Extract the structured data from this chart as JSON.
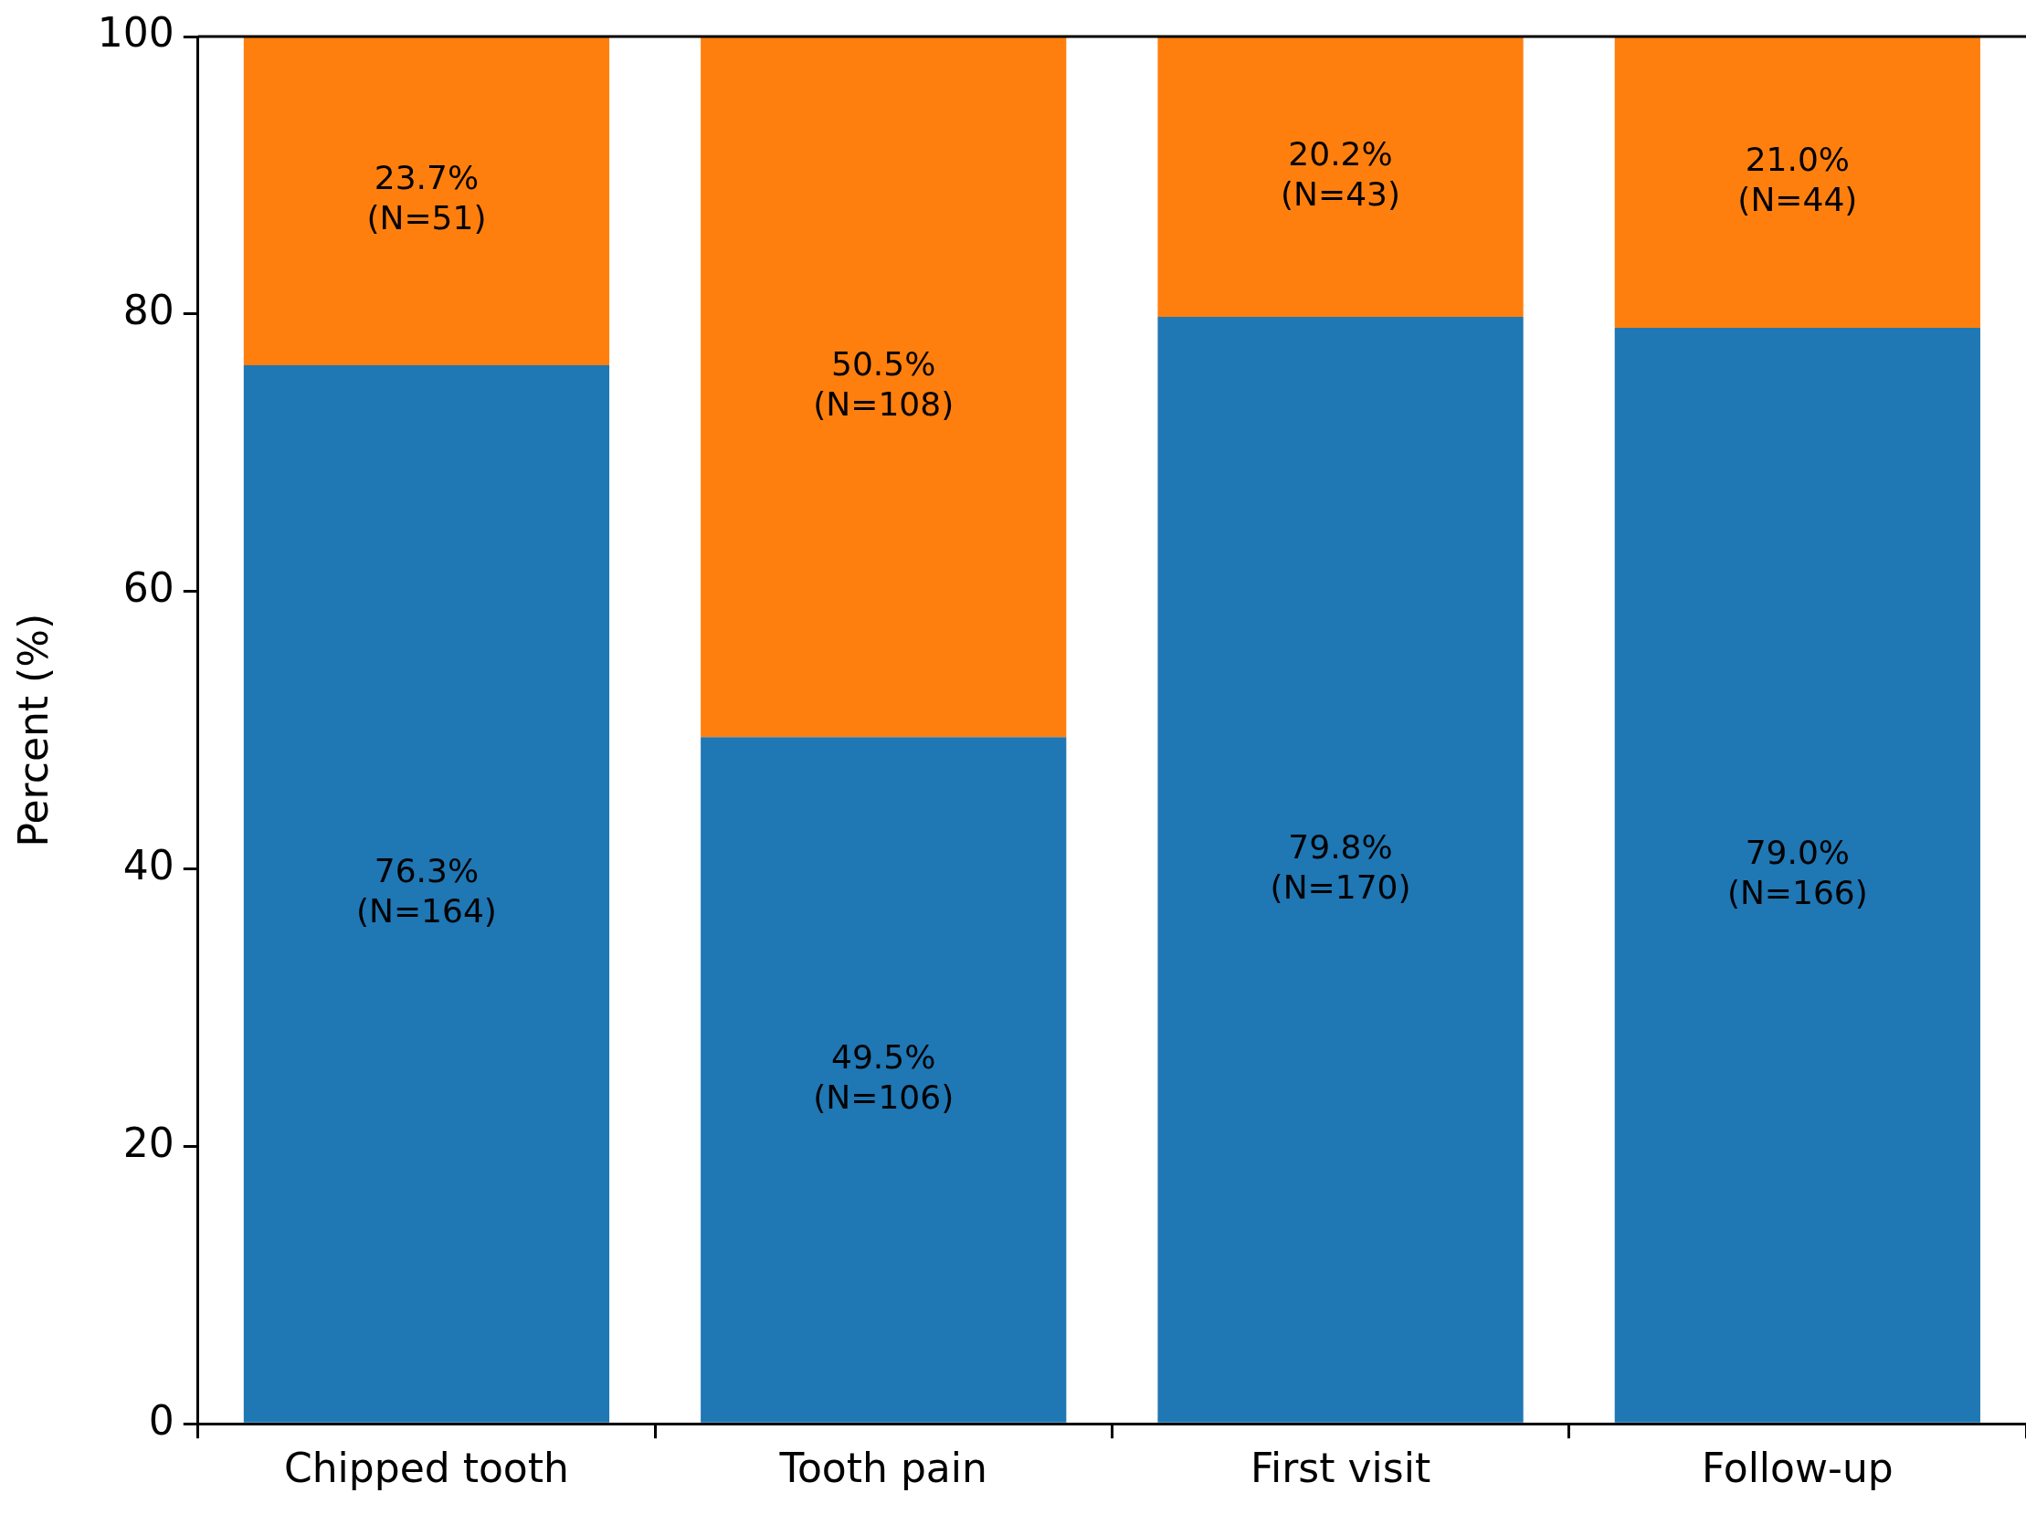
{
  "chart_data": {
    "type": "bar",
    "stacked": true,
    "ylabel": "Percent (%)",
    "categories": [
      "Chipped tooth",
      "Tooth pain",
      "First visit",
      "Follow-up"
    ],
    "series": [
      {
        "color": "#1f77b4",
        "values": [
          76.3,
          49.5,
          79.8,
          79.0
        ],
        "value_labels": [
          "76.3%\n(N=164)",
          "49.5%\n(N=106)",
          "79.8%\n(N=170)",
          "79.0%\n(N=166)"
        ]
      },
      {
        "color": "#ff7f0e",
        "values": [
          23.7,
          50.5,
          20.2,
          21.0
        ],
        "value_labels": [
          "23.7%\n(N=51)",
          "50.5%\n(N=108)",
          "20.2%\n(N=43)",
          "21.0%\n(N=44)"
        ]
      }
    ],
    "ylim": [
      0,
      100
    ],
    "yticks": [
      0,
      20,
      40,
      60,
      80,
      100
    ],
    "grid": false,
    "legend": false
  }
}
